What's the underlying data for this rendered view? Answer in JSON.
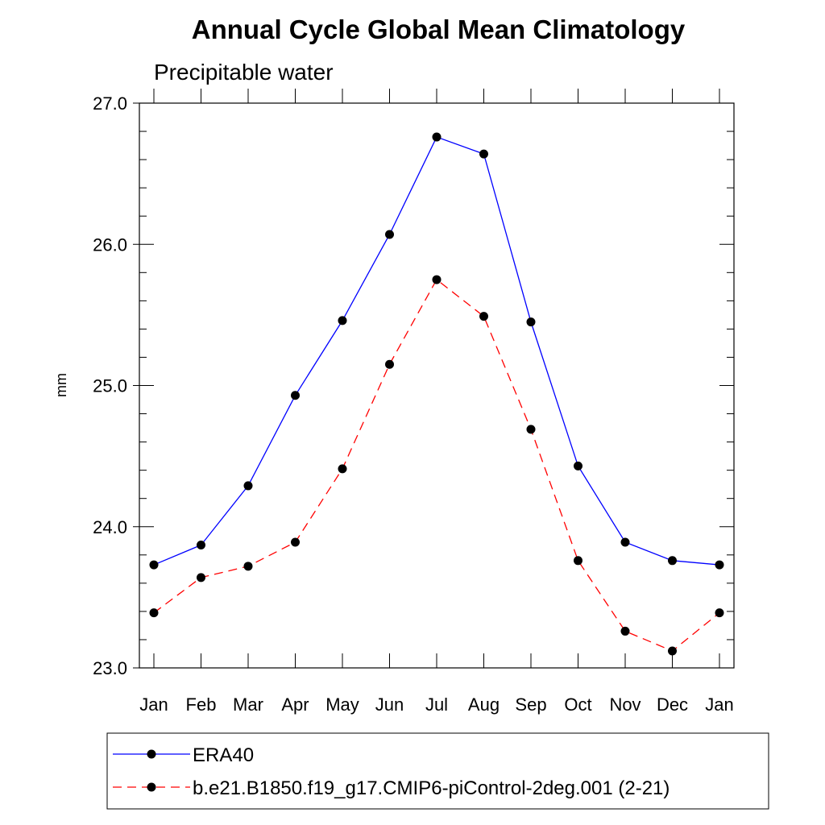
{
  "chart_data": {
    "type": "line",
    "title": "Annual Cycle Global Mean Climatology",
    "subtitle": "Precipitable water",
    "xlabel": "",
    "ylabel": "mm",
    "categories": [
      "Jan",
      "Feb",
      "Mar",
      "Apr",
      "May",
      "Jun",
      "Jul",
      "Aug",
      "Sep",
      "Oct",
      "Nov",
      "Dec",
      "Jan"
    ],
    "ylim": [
      23.0,
      27.0
    ],
    "yticks": [
      "23.0",
      "24.0",
      "25.0",
      "26.0",
      "27.0"
    ],
    "grid": false,
    "legend_position": "bottom",
    "series": [
      {
        "name": "ERA40",
        "color": "#0000ff",
        "line_style": "solid",
        "marker": "filled-circle",
        "values": [
          23.73,
          23.87,
          24.29,
          24.93,
          25.46,
          26.07,
          26.76,
          26.64,
          25.45,
          24.43,
          23.89,
          23.76,
          23.73
        ]
      },
      {
        "name": "b.e21.B1850.f19_g17.CMIP6-piControl-2deg.001 (2-21)",
        "color": "#ff0000",
        "line_style": "dashed",
        "marker": "filled-circle",
        "values": [
          23.39,
          23.64,
          23.72,
          23.89,
          24.41,
          25.15,
          25.75,
          25.49,
          24.69,
          23.76,
          23.26,
          23.12,
          23.39
        ]
      }
    ]
  }
}
